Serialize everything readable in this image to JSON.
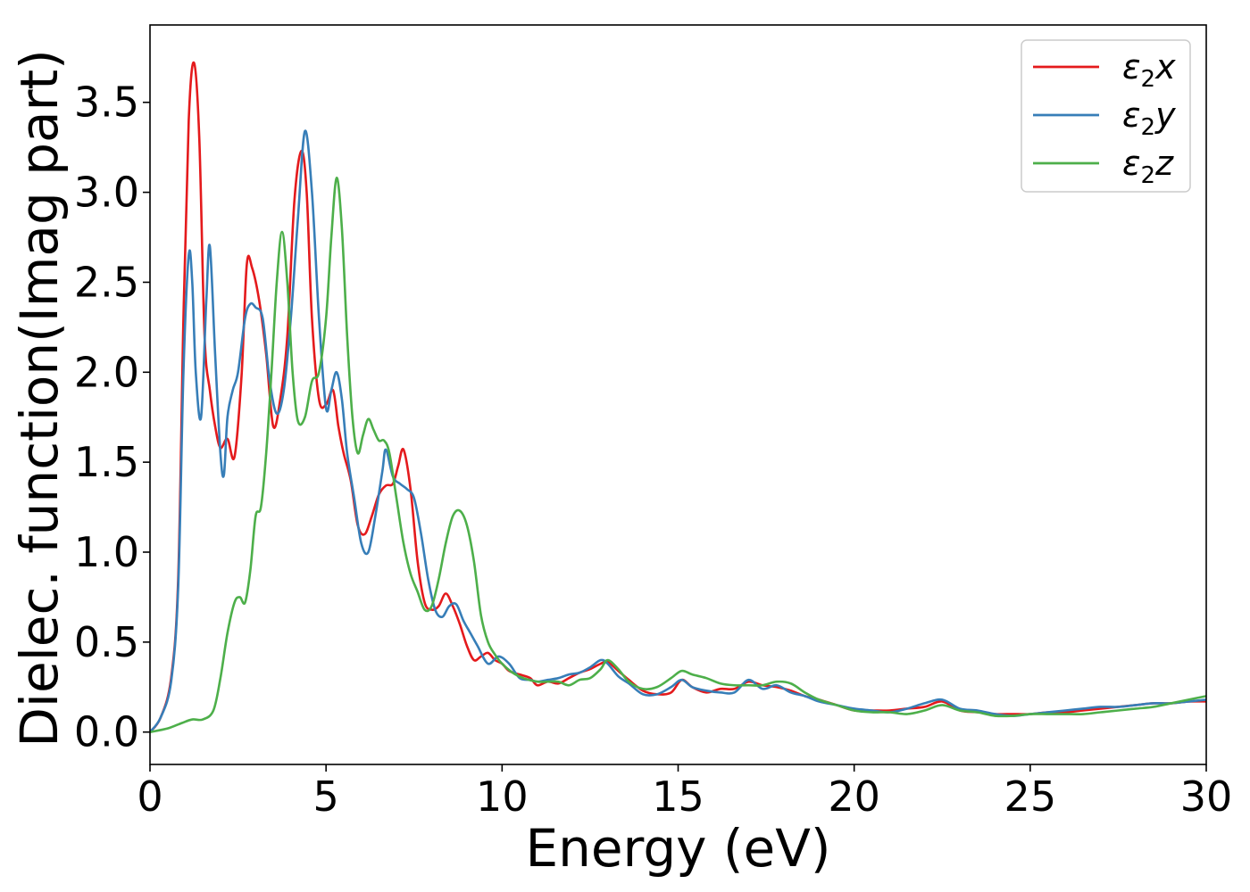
{
  "chart_data": {
    "type": "line",
    "title": "",
    "xlabel": "Energy (eV)",
    "ylabel": "Dielec. function(Imag part)",
    "xlim": [
      0,
      30
    ],
    "ylim": [
      -0.18,
      3.93
    ],
    "xticks": [
      0,
      5,
      10,
      15,
      20,
      25,
      30
    ],
    "xtick_labels": [
      "0",
      "5",
      "10",
      "15",
      "20",
      "25",
      "30"
    ],
    "yticks": [
      0.0,
      0.5,
      1.0,
      1.5,
      2.0,
      2.5,
      3.0,
      3.5
    ],
    "ytick_labels": [
      "0.0",
      "0.5",
      "1.0",
      "1.5",
      "2.0",
      "2.5",
      "3.0",
      "3.5"
    ],
    "grid": false,
    "legend_position": "top-right",
    "series": [
      {
        "name": "ε2x",
        "legend_base": "ε",
        "legend_sub": "2",
        "legend_suffix": "x",
        "color": "#e41a1c",
        "x": [
          0,
          0.3,
          0.6,
          0.8,
          0.95,
          1.1,
          1.25,
          1.4,
          1.55,
          1.7,
          1.85,
          2.0,
          2.2,
          2.4,
          2.6,
          2.75,
          2.9,
          3.1,
          3.3,
          3.5,
          3.7,
          3.9,
          4.1,
          4.3,
          4.45,
          4.6,
          4.8,
          5.0,
          5.2,
          5.35,
          5.5,
          5.7,
          5.9,
          6.1,
          6.3,
          6.5,
          6.7,
          6.9,
          7.05,
          7.2,
          7.4,
          7.6,
          7.8,
          8.0,
          8.2,
          8.4,
          8.6,
          8.8,
          9.0,
          9.2,
          9.4,
          9.6,
          9.8,
          10.0,
          10.2,
          10.5,
          10.8,
          11.0,
          11.3,
          11.6,
          11.9,
          12.2,
          12.5,
          12.8,
          13.0,
          13.3,
          13.6,
          14.0,
          14.4,
          14.8,
          15.1,
          15.4,
          15.8,
          16.2,
          16.6,
          17.0,
          17.4,
          17.8,
          18.2,
          18.6,
          19.0,
          19.5,
          20.0,
          20.5,
          21.0,
          21.5,
          22.0,
          22.5,
          23.0,
          23.5,
          24.0,
          24.5,
          25.0,
          25.5,
          26.0,
          26.5,
          27.0,
          27.5,
          28.0,
          28.5,
          29.0,
          29.5,
          30.0
        ],
        "y": [
          0.0,
          0.08,
          0.3,
          0.85,
          2.3,
          3.4,
          3.72,
          3.3,
          2.2,
          1.9,
          1.7,
          1.58,
          1.63,
          1.53,
          1.98,
          2.6,
          2.58,
          2.4,
          2.1,
          1.7,
          1.85,
          2.2,
          2.95,
          3.23,
          3.0,
          2.3,
          1.85,
          1.82,
          1.9,
          1.7,
          1.55,
          1.4,
          1.15,
          1.1,
          1.2,
          1.32,
          1.37,
          1.38,
          1.48,
          1.57,
          1.35,
          0.95,
          0.72,
          0.68,
          0.7,
          0.77,
          0.7,
          0.6,
          0.48,
          0.4,
          0.42,
          0.44,
          0.4,
          0.38,
          0.34,
          0.32,
          0.3,
          0.26,
          0.28,
          0.27,
          0.3,
          0.33,
          0.35,
          0.38,
          0.39,
          0.34,
          0.29,
          0.23,
          0.21,
          0.22,
          0.29,
          0.25,
          0.22,
          0.24,
          0.24,
          0.28,
          0.26,
          0.25,
          0.23,
          0.2,
          0.18,
          0.15,
          0.12,
          0.12,
          0.12,
          0.13,
          0.14,
          0.17,
          0.12,
          0.11,
          0.1,
          0.1,
          0.1,
          0.11,
          0.11,
          0.12,
          0.13,
          0.14,
          0.15,
          0.16,
          0.16,
          0.17,
          0.17
        ]
      },
      {
        "name": "ε2y",
        "legend_base": "ε",
        "legend_sub": "2",
        "legend_suffix": "y",
        "color": "#377eb8",
        "x": [
          0,
          0.3,
          0.6,
          0.8,
          0.95,
          1.1,
          1.2,
          1.3,
          1.45,
          1.6,
          1.7,
          1.85,
          2.0,
          2.1,
          2.2,
          2.35,
          2.5,
          2.7,
          2.85,
          3.0,
          3.2,
          3.4,
          3.6,
          3.8,
          4.0,
          4.2,
          4.4,
          4.6,
          4.8,
          5.0,
          5.15,
          5.3,
          5.45,
          5.6,
          5.8,
          6.0,
          6.2,
          6.4,
          6.6,
          6.7,
          6.9,
          7.1,
          7.3,
          7.5,
          7.7,
          7.9,
          8.1,
          8.3,
          8.5,
          8.7,
          8.9,
          9.1,
          9.3,
          9.6,
          9.9,
          10.2,
          10.5,
          10.8,
          11.0,
          11.3,
          11.6,
          11.9,
          12.2,
          12.5,
          12.8,
          13.0,
          13.3,
          13.6,
          14.0,
          14.4,
          14.8,
          15.1,
          15.4,
          15.8,
          16.2,
          16.6,
          17.0,
          17.4,
          17.8,
          18.2,
          18.6,
          19.0,
          19.5,
          20.0,
          20.5,
          21.0,
          21.5,
          22.0,
          22.5,
          23.0,
          23.5,
          24.0,
          24.5,
          25.0,
          25.5,
          26.0,
          26.5,
          27.0,
          27.5,
          28.0,
          28.5,
          29.0,
          29.5,
          30.0
        ],
        "y": [
          0.0,
          0.08,
          0.28,
          0.8,
          2.0,
          2.65,
          2.5,
          2.0,
          1.75,
          2.4,
          2.7,
          2.1,
          1.55,
          1.43,
          1.75,
          1.9,
          2.0,
          2.3,
          2.38,
          2.36,
          2.3,
          1.95,
          1.77,
          1.9,
          2.3,
          2.85,
          3.34,
          3.0,
          2.3,
          1.8,
          1.9,
          2.0,
          1.85,
          1.55,
          1.3,
          1.05,
          1.0,
          1.2,
          1.45,
          1.57,
          1.42,
          1.38,
          1.35,
          1.3,
          1.1,
          0.85,
          0.68,
          0.64,
          0.7,
          0.71,
          0.62,
          0.55,
          0.48,
          0.38,
          0.42,
          0.38,
          0.3,
          0.29,
          0.28,
          0.29,
          0.3,
          0.32,
          0.33,
          0.36,
          0.4,
          0.38,
          0.31,
          0.27,
          0.21,
          0.21,
          0.25,
          0.29,
          0.25,
          0.23,
          0.22,
          0.22,
          0.29,
          0.24,
          0.26,
          0.22,
          0.2,
          0.17,
          0.15,
          0.13,
          0.12,
          0.11,
          0.13,
          0.16,
          0.18,
          0.13,
          0.12,
          0.1,
          0.09,
          0.1,
          0.11,
          0.12,
          0.13,
          0.14,
          0.14,
          0.15,
          0.16,
          0.16,
          0.17,
          0.18
        ]
      },
      {
        "name": "ε2z",
        "legend_base": "ε",
        "legend_sub": "2",
        "legend_suffix": "z",
        "color": "#4daf4a",
        "x": [
          0,
          0.5,
          0.9,
          1.2,
          1.5,
          1.8,
          2.0,
          2.2,
          2.4,
          2.55,
          2.7,
          2.85,
          3.0,
          3.15,
          3.3,
          3.45,
          3.6,
          3.75,
          3.9,
          4.05,
          4.2,
          4.4,
          4.6,
          4.8,
          5.0,
          5.15,
          5.3,
          5.45,
          5.6,
          5.75,
          5.9,
          6.05,
          6.2,
          6.35,
          6.5,
          6.65,
          6.8,
          7.0,
          7.2,
          7.4,
          7.6,
          7.8,
          8.0,
          8.2,
          8.4,
          8.6,
          8.8,
          9.0,
          9.2,
          9.4,
          9.6,
          9.8,
          10.0,
          10.3,
          10.6,
          11.0,
          11.3,
          11.6,
          11.9,
          12.2,
          12.5,
          12.8,
          13.0,
          13.3,
          13.6,
          14.0,
          14.4,
          14.8,
          15.1,
          15.4,
          15.8,
          16.2,
          16.6,
          17.0,
          17.4,
          17.8,
          18.2,
          18.6,
          19.0,
          19.5,
          20.0,
          20.5,
          21.0,
          21.5,
          22.0,
          22.5,
          23.0,
          23.5,
          24.0,
          24.5,
          25.0,
          25.5,
          26.0,
          26.5,
          27.0,
          27.5,
          28.0,
          28.5,
          29.0,
          29.5,
          30.0
        ],
        "y": [
          0.0,
          0.02,
          0.05,
          0.07,
          0.07,
          0.12,
          0.3,
          0.55,
          0.72,
          0.75,
          0.72,
          0.9,
          1.2,
          1.25,
          1.55,
          2.0,
          2.5,
          2.78,
          2.5,
          2.0,
          1.73,
          1.75,
          1.95,
          2.0,
          2.3,
          2.75,
          3.08,
          2.8,
          2.2,
          1.75,
          1.55,
          1.65,
          1.74,
          1.68,
          1.62,
          1.62,
          1.55,
          1.3,
          1.05,
          0.88,
          0.78,
          0.68,
          0.7,
          0.85,
          1.05,
          1.2,
          1.23,
          1.15,
          0.95,
          0.65,
          0.5,
          0.43,
          0.38,
          0.33,
          0.3,
          0.28,
          0.28,
          0.28,
          0.26,
          0.29,
          0.3,
          0.35,
          0.4,
          0.35,
          0.28,
          0.24,
          0.25,
          0.3,
          0.34,
          0.32,
          0.3,
          0.27,
          0.26,
          0.26,
          0.26,
          0.28,
          0.27,
          0.22,
          0.18,
          0.15,
          0.12,
          0.11,
          0.11,
          0.1,
          0.12,
          0.15,
          0.12,
          0.11,
          0.09,
          0.09,
          0.1,
          0.1,
          0.1,
          0.1,
          0.11,
          0.12,
          0.13,
          0.14,
          0.16,
          0.18,
          0.2
        ]
      }
    ]
  }
}
